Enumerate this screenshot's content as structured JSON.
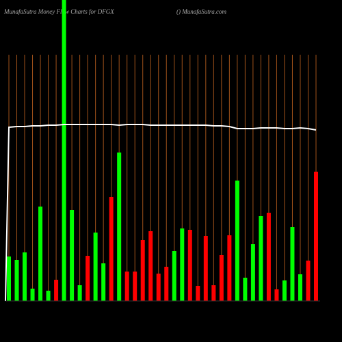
{
  "chart_data": {
    "type": "bar",
    "title": "MunafaSutra  Money Flow  Charts for DFGX",
    "subtitle": "() MunafaSutra.com",
    "categories": [
      null,
      null,
      null,
      null,
      null,
      null,
      null,
      null,
      null,
      null,
      null,
      null,
      null,
      null,
      null,
      null,
      null,
      null,
      null,
      null,
      null,
      null,
      null,
      null,
      null,
      null,
      null,
      null,
      null,
      null,
      null,
      null,
      null,
      null,
      null,
      null,
      null,
      null,
      null,
      null
    ],
    "ylim": [
      0,
      440
    ],
    "series": [
      {
        "name": null,
        "type": "bar",
        "colors": [
          "#00ff00",
          "#00ff00",
          "#00ff00",
          "#00ff00",
          "#00ff00",
          "#00ff00",
          "#ff0000",
          "#00ff00",
          "#00ff00",
          "#00ff00",
          "#ff0000",
          "#00ff00",
          "#00ff00",
          "#ff0000",
          "#00ff00",
          "#ff0000",
          "#ff0000",
          "#ff0000",
          "#ff0000",
          "#ff0000",
          "#ff0000",
          "#00ff00",
          "#00ff00",
          "#ff0000",
          "#ff0000",
          "#ff0000",
          "#ff0000",
          "#ff0000",
          "#ff0000",
          "#00ff00",
          "#00ff00",
          "#00ff00",
          "#00ff00",
          "#ff0000",
          "#ff0000",
          "#00ff00",
          "#00ff00",
          "#00ff00",
          "#ff0000",
          "#ff0000"
        ],
        "values": [
          65,
          60,
          71,
          18,
          138,
          15,
          31,
          440,
          133,
          23,
          66,
          100,
          55,
          152,
          217,
          43,
          43,
          89,
          102,
          40,
          50,
          73,
          106,
          104,
          22,
          95,
          23,
          67,
          96,
          176,
          34,
          83,
          124,
          129,
          17,
          30,
          108,
          39,
          59,
          189
        ]
      },
      {
        "name": null,
        "type": "line",
        "color": "#ffffff",
        "values": [
          254,
          255,
          255,
          256,
          256,
          257,
          257,
          258,
          258,
          258,
          258,
          258,
          258,
          258,
          257,
          258,
          258,
          258,
          257,
          257,
          257,
          257,
          257,
          257,
          257,
          257,
          256,
          256,
          255,
          252,
          252,
          252,
          253,
          253,
          253,
          252,
          252,
          253,
          252,
          250
        ]
      }
    ]
  }
}
